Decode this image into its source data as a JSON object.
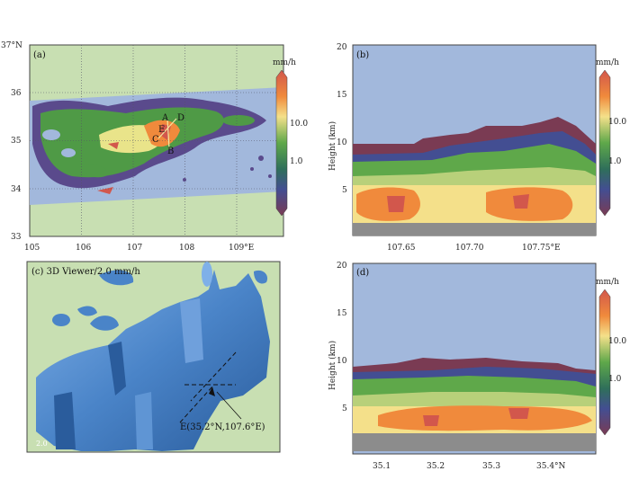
{
  "colors": {
    "land": "#c8dfb2",
    "sky": "#a2b8dc",
    "terrain": "#8c8c8c",
    "scale_top": "#d2574c",
    "scale_mid": "#5fa84a",
    "scale_low": "#434e92",
    "scale_bot": "#7a3b53"
  },
  "panel_a": {
    "label": "(a)",
    "unit": "mm/h",
    "lat_ticks": [
      "37°N",
      "36",
      "35",
      "34",
      "33"
    ],
    "lon_ticks": [
      "105",
      "106",
      "107",
      "108",
      "109°E"
    ],
    "points": [
      "A",
      "D",
      "E",
      "C",
      "B"
    ],
    "scale_labels": [
      "10.0",
      "1.0"
    ]
  },
  "panel_b": {
    "label": "(b)",
    "unit": "mm/h",
    "ylabel": "Height (km)",
    "y_ticks": [
      "20",
      "15",
      "10",
      "5"
    ],
    "x_ticks": [
      "107.65",
      "107.70",
      "107.75°E"
    ],
    "scale_labels": [
      "10.0",
      "1.0"
    ]
  },
  "panel_c": {
    "label": "(c) 3D Viewer/2.0 mm/h",
    "annotation": "E(35.2°N,107.6°E)",
    "corner": "2.0"
  },
  "panel_d": {
    "label": "(d)",
    "unit": "mm/h",
    "ylabel": "Height (km)",
    "y_ticks": [
      "20",
      "15",
      "10",
      "5"
    ],
    "x_ticks": [
      "35.1",
      "35.2",
      "35.3",
      "35.4°N"
    ],
    "scale_labels": [
      "10.0",
      "1.0"
    ]
  }
}
